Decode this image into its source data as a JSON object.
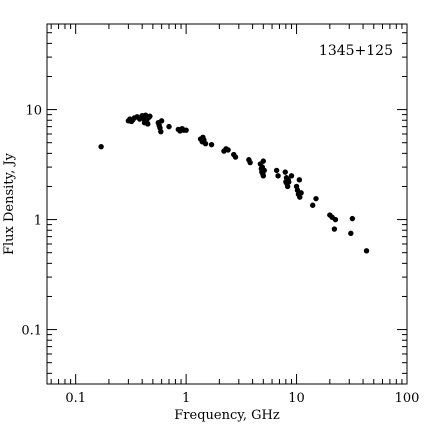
{
  "chart_data": {
    "type": "scatter",
    "title": "1345+125",
    "xlabel": "Frequency, GHz",
    "ylabel": "Flux Density, Jy",
    "xscale": "log",
    "yscale": "log",
    "xlim": [
      0.055,
      100
    ],
    "ylim": [
      0.032,
      60
    ],
    "x_ticks": [
      {
        "value": 0.1,
        "label": "0.1"
      },
      {
        "value": 1,
        "label": "1"
      },
      {
        "value": 10,
        "label": "10"
      },
      {
        "value": 100,
        "label": "100"
      }
    ],
    "y_ticks": [
      {
        "value": 0.1,
        "label": "0.1"
      },
      {
        "value": 1,
        "label": "1"
      },
      {
        "value": 10,
        "label": "10"
      }
    ],
    "grid": false,
    "legend": "none",
    "marker_color": "#000000",
    "points": [
      [
        0.17,
        4.6
      ],
      [
        0.3,
        7.9
      ],
      [
        0.31,
        8.2
      ],
      [
        0.32,
        7.8
      ],
      [
        0.33,
        8.1
      ],
      [
        0.34,
        8.4
      ],
      [
        0.36,
        8.6
      ],
      [
        0.38,
        8.2
      ],
      [
        0.4,
        8.8
      ],
      [
        0.41,
        8.3
      ],
      [
        0.42,
        7.6
      ],
      [
        0.43,
        8.9
      ],
      [
        0.44,
        7.9
      ],
      [
        0.45,
        7.4
      ],
      [
        0.46,
        8.5
      ],
      [
        0.47,
        8.7
      ],
      [
        0.56,
        7.6
      ],
      [
        0.57,
        7.2
      ],
      [
        0.58,
        6.8
      ],
      [
        0.59,
        6.3
      ],
      [
        0.6,
        7.9
      ],
      [
        0.7,
        7.0
      ],
      [
        0.85,
        6.6
      ],
      [
        0.88,
        6.4
      ],
      [
        0.92,
        6.7
      ],
      [
        0.95,
        6.5
      ],
      [
        1.0,
        6.5
      ],
      [
        1.35,
        5.4
      ],
      [
        1.4,
        5.1
      ],
      [
        1.42,
        5.6
      ],
      [
        1.45,
        5.3
      ],
      [
        1.5,
        4.9
      ],
      [
        1.7,
        4.8
      ],
      [
        2.2,
        4.2
      ],
      [
        2.3,
        4.4
      ],
      [
        2.4,
        4.3
      ],
      [
        2.7,
        3.9
      ],
      [
        2.8,
        3.7
      ],
      [
        3.7,
        3.5
      ],
      [
        3.8,
        3.3
      ],
      [
        4.7,
        3.2
      ],
      [
        4.8,
        2.9
      ],
      [
        4.85,
        2.7
      ],
      [
        4.9,
        3.0
      ],
      [
        4.95,
        2.6
      ],
      [
        5.0,
        2.5
      ],
      [
        5.0,
        3.4
      ],
      [
        5.1,
        2.8
      ],
      [
        6.6,
        2.8
      ],
      [
        6.8,
        2.5
      ],
      [
        7.9,
        2.7
      ],
      [
        8.0,
        2.2
      ],
      [
        8.1,
        2.4
      ],
      [
        8.2,
        2.1
      ],
      [
        8.3,
        2.0
      ],
      [
        8.4,
        2.3
      ],
      [
        8.5,
        2.2
      ],
      [
        9.0,
        2.5
      ],
      [
        10.0,
        2.0
      ],
      [
        10.2,
        1.85
      ],
      [
        10.4,
        1.7
      ],
      [
        10.6,
        2.3
      ],
      [
        10.7,
        1.6
      ],
      [
        11.0,
        1.75
      ],
      [
        14.0,
        1.35
      ],
      [
        15.0,
        1.55
      ],
      [
        20.0,
        1.1
      ],
      [
        21.0,
        1.05
      ],
      [
        22.0,
        0.82
      ],
      [
        22.5,
        1.0
      ],
      [
        31.0,
        0.75
      ],
      [
        32.0,
        1.02
      ],
      [
        43.0,
        0.52
      ]
    ]
  }
}
